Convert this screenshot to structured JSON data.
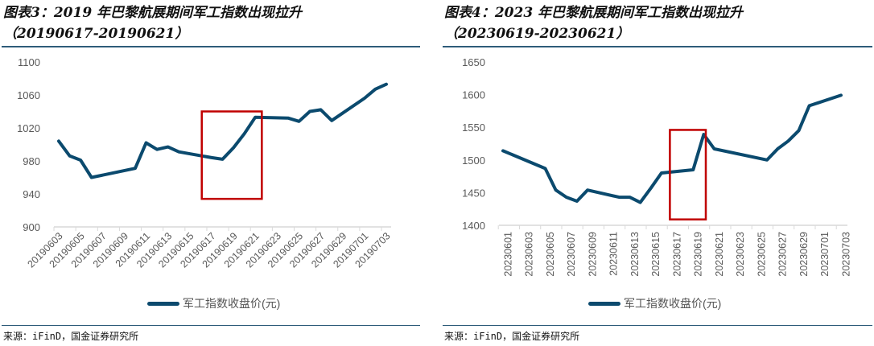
{
  "colors": {
    "line": "#0b4a6e",
    "highlight": "#c00000",
    "axis": "#d9d9d9",
    "tick_text": "#595959"
  },
  "charts": [
    {
      "title_line1": "图表3：2019 年巴黎航展期间军工指数出现拉升",
      "title_line2": "（20190617-20190621）",
      "source": "来源：iFinD，国金证券研究所",
      "legend": "军工指数收盘价(元)"
    },
    {
      "title_line1": "图表4：2023 年巴黎航展期间军工指数出现拉升",
      "title_line2": "（20230619-20230621）",
      "source": "来源：iFinD，国金证券研究所",
      "legend": "军工指数收盘价(元)"
    }
  ],
  "chart_data": [
    {
      "type": "line",
      "title": "图表3：2019 年巴黎航展期间军工指数出现拉升（20190617-20190621）",
      "series": [
        {
          "name": "军工指数收盘价(元)",
          "x": [
            "20190603",
            "20190604",
            "20190605",
            "20190606",
            "20190610",
            "20190611",
            "20190612",
            "20190613",
            "20190614",
            "20190617",
            "20190618",
            "20190619",
            "20190620",
            "20190621",
            "20190624",
            "20190625",
            "20190626",
            "20190627",
            "20190628",
            "20190701",
            "20190702",
            "20190703"
          ],
          "day": [
            0,
            1,
            2,
            3,
            7,
            8,
            9,
            10,
            11,
            14,
            15,
            16,
            17,
            18,
            21,
            22,
            23,
            24,
            25,
            28,
            29,
            30
          ],
          "values": [
            1004,
            986,
            981,
            960,
            971,
            1002,
            994,
            997,
            991,
            984,
            982,
            996,
            1013,
            1033,
            1032,
            1028,
            1040,
            1042,
            1029,
            1056,
            1067,
            1073
          ]
        }
      ],
      "xticks": [
        "20190603",
        "20190605",
        "20190607",
        "20190609",
        "20190611",
        "20190613",
        "20190615",
        "20190617",
        "20190619",
        "20190621",
        "20190623",
        "20190625",
        "20190627",
        "20190629",
        "20190701",
        "20190703"
      ],
      "yticks": [
        900,
        940,
        980,
        1020,
        1060,
        1100
      ],
      "ylim": [
        900,
        1100
      ],
      "xdays": 30,
      "highlight": {
        "from": "20190617",
        "to": "20190621",
        "day_range": [
          13.1,
          18.6
        ],
        "value_range": [
          934,
          1040
        ]
      },
      "label_rotation": -45,
      "legend": "bottom"
    },
    {
      "type": "line",
      "title": "图表4：2023 年巴黎航展期间军工指数出现拉升（20230619-20230621）",
      "series": [
        {
          "name": "军工指数收盘价(元)",
          "x": [
            "20230601",
            "20230605",
            "20230606",
            "20230607",
            "20230608",
            "20230609",
            "20230612",
            "20230613",
            "20230614",
            "20230615",
            "20230616",
            "20230619",
            "20230620",
            "20230621",
            "20230626",
            "20230627",
            "20230628",
            "20230629",
            "20230630",
            "20230703"
          ],
          "day": [
            0,
            4,
            5,
            6,
            7,
            8,
            11,
            12,
            13,
            14,
            15,
            18,
            19,
            20,
            25,
            26,
            27,
            28,
            29,
            32
          ],
          "values": [
            1514,
            1487,
            1454,
            1443,
            1437,
            1454,
            1443,
            1443,
            1435,
            1457,
            1480,
            1485,
            1539,
            1517,
            1500,
            1517,
            1529,
            1545,
            1583,
            1599
          ]
        }
      ],
      "xticks": [
        "20230601",
        "20230603",
        "20230605",
        "20230607",
        "20230609",
        "20230611",
        "20230613",
        "20230615",
        "20230617",
        "20230619",
        "20230621",
        "20230623",
        "20230625",
        "20230627",
        "20230629",
        "20230701",
        "20230703"
      ],
      "yticks": [
        1400,
        1450,
        1500,
        1550,
        1600,
        1650
      ],
      "ylim": [
        1400,
        1650
      ],
      "xdays": 32,
      "highlight": {
        "from": "20230619",
        "to": "20230621",
        "day_range": [
          15.8,
          19.2
        ],
        "value_range": [
          1409,
          1546
        ]
      },
      "label_rotation": -90,
      "legend": "bottom"
    }
  ]
}
